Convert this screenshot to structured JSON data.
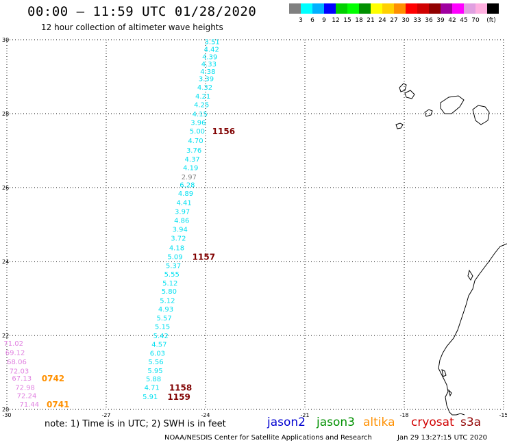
{
  "header": {
    "title": "00:00 – 11:59 UTC 01/28/2020",
    "subtitle": "12 hour collection of altimeter wave heights"
  },
  "colorbar": {
    "colors": [
      "#808080",
      "#00ffff",
      "#00b0ff",
      "#0000ff",
      "#00d000",
      "#00ff00",
      "#009000",
      "#ffff00",
      "#ffd000",
      "#ff9000",
      "#ff0000",
      "#d00000",
      "#900000",
      "#a000a0",
      "#ff00ff",
      "#e0a0e0",
      "#ffb0e0",
      "#000000"
    ],
    "labels": [
      "3",
      "6",
      "9",
      "12",
      "15",
      "18",
      "21",
      "24",
      "27",
      "30",
      "33",
      "36",
      "39",
      "42",
      "45",
      "70",
      "(ft)"
    ]
  },
  "axes": {
    "lon_labels": [
      "-30",
      "-27",
      "-24",
      "-21",
      "-18",
      "-15"
    ],
    "lat_labels": [
      "30",
      "28",
      "26",
      "24",
      "22",
      "20"
    ]
  },
  "tracks": [
    {
      "color": "#00e0f0",
      "points": [
        {
          "lat": 29.95,
          "lon": -23.8,
          "label": "3.51"
        },
        {
          "lat": 29.75,
          "lon": -23.82,
          "label": "4.42"
        },
        {
          "lat": 29.55,
          "lon": -23.87,
          "label": "4.39"
        },
        {
          "lat": 29.35,
          "lon": -23.9,
          "label": "4.33"
        },
        {
          "lat": 29.15,
          "lon": -23.93,
          "label": "4.38"
        },
        {
          "lat": 28.95,
          "lon": -23.98,
          "label": "3.39"
        },
        {
          "lat": 28.72,
          "lon": -24.02,
          "label": "4.32"
        },
        {
          "lat": 28.48,
          "lon": -24.08,
          "label": "4.21"
        },
        {
          "lat": 28.25,
          "lon": -24.12,
          "label": "4.25"
        },
        {
          "lat": 28.0,
          "lon": -24.17,
          "label": "4.15"
        },
        {
          "lat": 27.77,
          "lon": -24.22,
          "label": "3.96"
        },
        {
          "lat": 27.54,
          "lon": -24.25,
          "label": "5.00"
        },
        {
          "lat": 27.28,
          "lon": -24.3,
          "label": "4.70"
        },
        {
          "lat": 27.02,
          "lon": -24.35,
          "label": "3.76"
        },
        {
          "lat": 26.78,
          "lon": -24.4,
          "label": "4.37"
        },
        {
          "lat": 26.55,
          "lon": -24.45,
          "label": "4.19"
        },
        {
          "lat": 26.08,
          "lon": -24.55,
          "label": "6.28"
        },
        {
          "lat": 25.85,
          "lon": -24.6,
          "label": "4.89"
        },
        {
          "lat": 25.6,
          "lon": -24.65,
          "label": "4.41"
        },
        {
          "lat": 25.36,
          "lon": -24.7,
          "label": "3.97"
        },
        {
          "lat": 25.12,
          "lon": -24.72,
          "label": "4.86"
        },
        {
          "lat": 24.88,
          "lon": -24.77,
          "label": "3.94"
        },
        {
          "lat": 24.64,
          "lon": -24.82,
          "label": "3.72"
        },
        {
          "lat": 24.38,
          "lon": -24.87,
          "label": "4.18"
        },
        {
          "lat": 24.14,
          "lon": -24.92,
          "label": "5.09"
        },
        {
          "lat": 23.9,
          "lon": -24.97,
          "label": "5.37"
        },
        {
          "lat": 23.67,
          "lon": -25.02,
          "label": "5.55"
        },
        {
          "lat": 23.43,
          "lon": -25.07,
          "label": "5.12"
        },
        {
          "lat": 23.2,
          "lon": -25.1,
          "label": "5.80"
        },
        {
          "lat": 22.95,
          "lon": -25.15,
          "label": "5.12"
        },
        {
          "lat": 22.72,
          "lon": -25.2,
          "label": "4.93"
        },
        {
          "lat": 22.48,
          "lon": -25.25,
          "label": "5.57"
        },
        {
          "lat": 22.25,
          "lon": -25.3,
          "label": "5.15"
        },
        {
          "lat": 22.0,
          "lon": -25.35,
          "label": "5.42"
        },
        {
          "lat": 21.77,
          "lon": -25.4,
          "label": "4.57"
        },
        {
          "lat": 21.53,
          "lon": -25.45,
          "label": "6.03"
        },
        {
          "lat": 21.3,
          "lon": -25.5,
          "label": "5.56"
        },
        {
          "lat": 21.06,
          "lon": -25.52,
          "label": "5.95"
        },
        {
          "lat": 20.83,
          "lon": -25.57,
          "label": "5.88"
        },
        {
          "lat": 20.6,
          "lon": -25.62,
          "label": "4.71"
        },
        {
          "lat": 20.35,
          "lon": -25.67,
          "label": "5.91"
        }
      ]
    },
    {
      "color": "#808080",
      "points": [
        {
          "lat": 26.3,
          "lon": -24.5,
          "label": "2.97"
        }
      ]
    },
    {
      "color": "#e080e0",
      "points": [
        {
          "lat": 21.8,
          "lon": -29.8,
          "label": "71.02"
        },
        {
          "lat": 21.55,
          "lon": -29.75,
          "label": "69.12"
        },
        {
          "lat": 21.3,
          "lon": -29.7,
          "label": "68.06"
        },
        {
          "lat": 21.05,
          "lon": -29.63,
          "label": "72.03"
        },
        {
          "lat": 20.85,
          "lon": -29.55,
          "label": "67.13"
        },
        {
          "lat": 20.6,
          "lon": -29.45,
          "label": "72.98"
        },
        {
          "lat": 20.38,
          "lon": -29.4,
          "label": "72.24"
        },
        {
          "lat": 20.15,
          "lon": -29.32,
          "label": "71.44"
        }
      ]
    }
  ],
  "pass_labels": [
    {
      "text": "1156",
      "lat": 27.54,
      "lon": -23.8,
      "color": "#800000"
    },
    {
      "text": "1157",
      "lat": 24.14,
      "lon": -24.4,
      "color": "#800000"
    },
    {
      "text": "1158",
      "lat": 20.6,
      "lon": -25.1,
      "color": "#800000"
    },
    {
      "text": "1159",
      "lat": 20.35,
      "lon": -25.15,
      "color": "#800000"
    },
    {
      "text": "0742",
      "lat": 20.85,
      "lon": -28.95,
      "color": "#ff9000"
    },
    {
      "text": "0741",
      "lat": 20.15,
      "lon": -28.8,
      "color": "#ff9000"
    }
  ],
  "legend": {
    "note": "note: 1) Time is in UTC; 2) SWH is in feet",
    "satellites": [
      {
        "name": "jason2",
        "color": "#0000d0"
      },
      {
        "name": "jason3",
        "color": "#009000"
      },
      {
        "name": "altika",
        "color": "#ff9000"
      },
      {
        "name": "cryosat",
        "color": "#d00000"
      },
      {
        "name": "s3a",
        "color": "#900000"
      }
    ]
  },
  "footer": {
    "credit": "NOAA/NESDIS Center for Satellite Applications and Research",
    "timestamp": "Jan 29 13:27:15 UTC 2020"
  }
}
